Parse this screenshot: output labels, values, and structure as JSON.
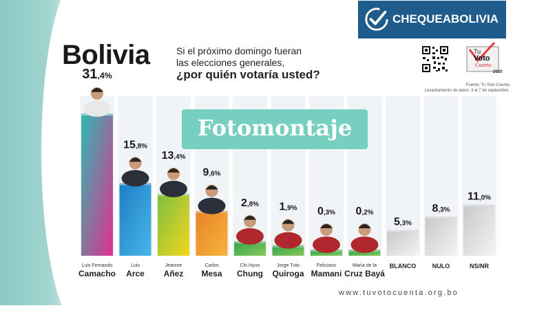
{
  "header": {
    "country": "Bolivia",
    "question_line1": "Si el próximo domingo fueran",
    "question_line2": "las elecciones generales,",
    "question_line3": "¿por quién votaría usted?"
  },
  "badge": {
    "brand": "CHEQUEABOLIVIA",
    "brand_color": "#1f5c8c"
  },
  "survey_logo": {
    "line1": "Tu",
    "line2": "Voto",
    "line3": "Cuenta",
    "year": "2020"
  },
  "source": {
    "line1": "Fuente: Tu Voto Cuenta",
    "line2": "Levantamiento de datos: 3 al 7 de septiembre."
  },
  "overlay": {
    "text": "Fotomontaje",
    "color": "#77cfc0"
  },
  "footer": {
    "url": "www.tuvotocuenta.org.bo"
  },
  "chart_data": {
    "type": "bar",
    "categories": [
      [
        "Luis Fernando",
        "Camacho"
      ],
      [
        "Luis",
        "Arce"
      ],
      [
        "Jeanine",
        "Añez"
      ],
      [
        "Carlos",
        "Mesa"
      ],
      [
        "Chi Hyun",
        "Chung"
      ],
      [
        "Jorge Tuto",
        "Quiroga"
      ],
      [
        "Feliciano",
        "Mamani"
      ],
      [
        "María de la",
        "Cruz Bayá"
      ],
      [
        "",
        "BLANCO"
      ],
      [
        "",
        "NULO"
      ],
      [
        "",
        "NS/NR"
      ]
    ],
    "values": [
      31.4,
      15.8,
      13.4,
      9.6,
      2.8,
      1.9,
      0.3,
      0.2,
      5.3,
      8.3,
      11.0
    ],
    "value_labels": [
      [
        "31",
        ",4%"
      ],
      [
        "15",
        ",8%"
      ],
      [
        "13",
        ",4%"
      ],
      [
        "9",
        ",6%"
      ],
      [
        "2",
        ",8%"
      ],
      [
        "1",
        ",9%"
      ],
      [
        "0",
        ",3%"
      ],
      [
        "0",
        ",2%"
      ],
      [
        "5",
        ",3%"
      ],
      [
        "8",
        ",3%"
      ],
      [
        "11",
        ",0%"
      ]
    ],
    "bar_colors": [
      [
        "#2fb9b0",
        "#e0308f"
      ],
      [
        "#1e7fc4",
        "#49b7e9"
      ],
      [
        "#7dc142",
        "#f5d51a"
      ],
      [
        "#e8852a",
        "#f6b33a"
      ],
      [
        "#3aa64a",
        "#86c95c"
      ],
      [
        "#3aa64a",
        "#86c95c"
      ],
      [
        "#3aa64a",
        "#86c95c"
      ],
      [
        "#3aa64a",
        "#86c95c"
      ],
      [
        "#c9c9c9",
        "#f4f4f4"
      ],
      [
        "#c9c9c9",
        "#f4f4f4"
      ],
      [
        "#c9c9c9",
        "#f4f4f4"
      ]
    ],
    "candidate_photos": 8,
    "title": "",
    "xlabel": "",
    "ylabel": ""
  }
}
